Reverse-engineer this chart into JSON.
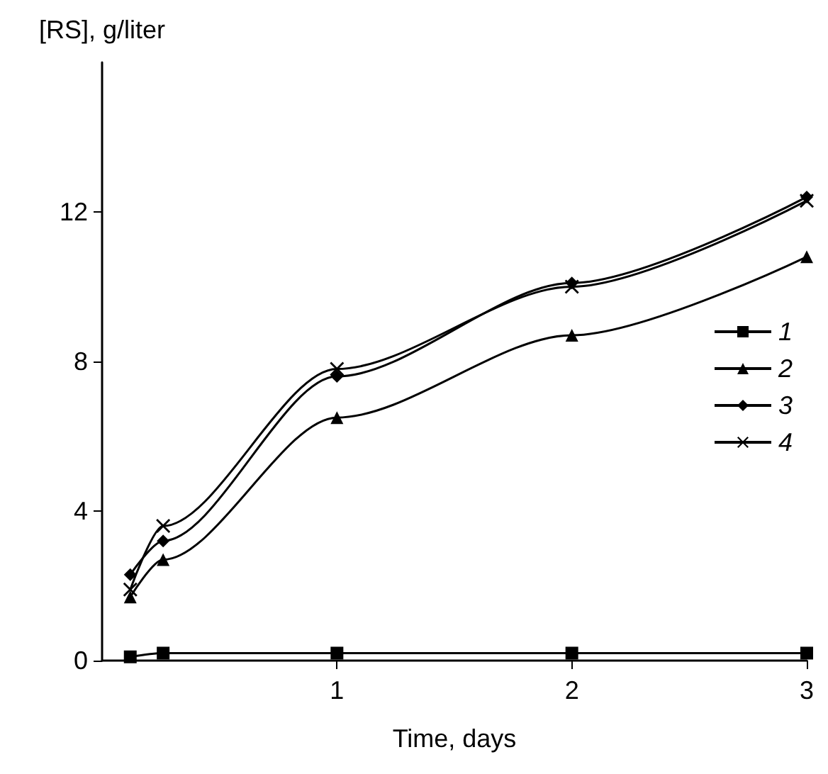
{
  "chart_data": {
    "type": "line",
    "xlabel": "Time, days",
    "ylabel": "[RS], g/liter",
    "xlim": [
      0,
      3
    ],
    "xticks": [
      1,
      2,
      3
    ],
    "ylim": [
      0,
      16
    ],
    "yticks": [
      0,
      4,
      8,
      12
    ],
    "grid": false,
    "legend": "right",
    "series": [
      {
        "name": "1",
        "color": "#000000",
        "marker": "square",
        "x": [
          0.12,
          0.26,
          1,
          2,
          3
        ],
        "values": [
          0.1,
          0.2,
          0.2,
          0.2,
          0.2
        ]
      },
      {
        "name": "2",
        "color": "#000000",
        "marker": "triangle",
        "x": [
          0.12,
          0.26,
          1,
          2,
          3
        ],
        "values": [
          1.7,
          2.7,
          6.5,
          8.7,
          10.8
        ]
      },
      {
        "name": "3",
        "color": "#000000",
        "marker": "diamond",
        "x": [
          0.12,
          0.26,
          1,
          2,
          3
        ],
        "values": [
          2.3,
          3.2,
          7.6,
          10.1,
          12.4
        ]
      },
      {
        "name": "4",
        "color": "#000000",
        "marker": "cross",
        "x": [
          0.12,
          0.26,
          1,
          2,
          3
        ],
        "values": [
          1.9,
          3.6,
          7.8,
          10.0,
          12.3
        ]
      }
    ]
  }
}
